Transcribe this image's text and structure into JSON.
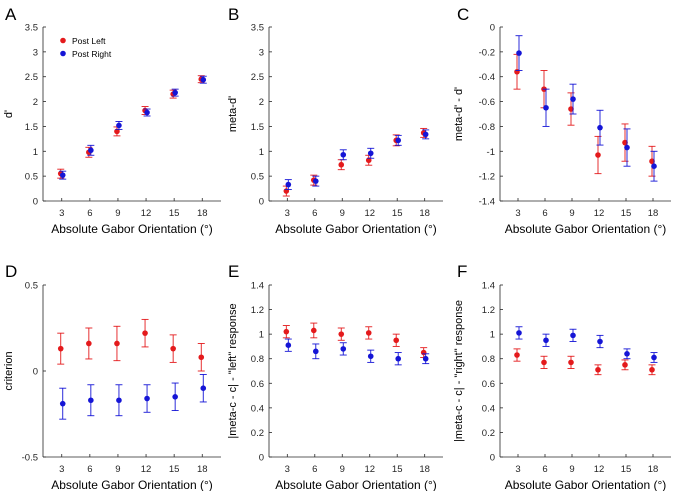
{
  "colors": {
    "red": "#e41a1c",
    "blue": "#1515d6",
    "axis": "#262626"
  },
  "chart_data": [
    {
      "panel": "A",
      "type": "scatter",
      "xlabel": "Absolute Gabor Orientation (°)",
      "ylabel": "d'",
      "xticks": [
        "3",
        "6",
        "9",
        "12",
        "15",
        "18"
      ],
      "x": [
        3,
        6,
        9,
        12,
        15,
        18
      ],
      "xlim": [
        1,
        20
      ],
      "ylim": [
        0,
        3.5
      ],
      "yticks": [
        0,
        0.5,
        1,
        1.5,
        2,
        2.5,
        3,
        3.5
      ],
      "ytick_labels": [
        "0",
        "0.5",
        "1",
        "1.5",
        "2",
        "2.5",
        "3",
        "3.5"
      ],
      "legend": {
        "position": "top-left",
        "entries": [
          "Post Left",
          "Post Right"
        ]
      },
      "series": [
        {
          "name": "Post Left",
          "color": "red",
          "values": [
            0.55,
            0.98,
            1.4,
            1.82,
            2.15,
            2.45
          ],
          "err": [
            0.09,
            0.1,
            0.09,
            0.08,
            0.08,
            0.07
          ]
        },
        {
          "name": "Post Right",
          "color": "blue",
          "values": [
            0.52,
            1.02,
            1.52,
            1.78,
            2.18,
            2.44
          ],
          "err": [
            0.08,
            0.1,
            0.08,
            0.07,
            0.07,
            0.07
          ]
        }
      ]
    },
    {
      "panel": "B",
      "type": "scatter",
      "xlabel": "Absolute Gabor Orientation (°)",
      "ylabel": "meta-d'",
      "xticks": [
        "3",
        "6",
        "9",
        "12",
        "15",
        "18"
      ],
      "x": [
        3,
        6,
        9,
        12,
        15,
        18
      ],
      "xlim": [
        1,
        20
      ],
      "ylim": [
        0,
        3.5
      ],
      "yticks": [
        0,
        0.5,
        1,
        1.5,
        2,
        2.5,
        3,
        3.5
      ],
      "ytick_labels": [
        "0",
        "0.5",
        "1",
        "1.5",
        "2",
        "2.5",
        "3",
        "3.5"
      ],
      "series": [
        {
          "name": "Post Left",
          "color": "red",
          "values": [
            0.2,
            0.42,
            0.73,
            0.82,
            1.22,
            1.37
          ],
          "err": [
            0.1,
            0.1,
            0.1,
            0.1,
            0.11,
            0.09
          ]
        },
        {
          "name": "Post Right",
          "color": "blue",
          "values": [
            0.33,
            0.4,
            0.93,
            0.96,
            1.22,
            1.34
          ],
          "err": [
            0.1,
            0.1,
            0.1,
            0.1,
            0.1,
            0.09
          ]
        }
      ]
    },
    {
      "panel": "C",
      "type": "scatter",
      "xlabel": "Absolute Gabor Orientation (°)",
      "ylabel": "meta-d' - d'",
      "xticks": [
        "3",
        "6",
        "9",
        "12",
        "15",
        "18"
      ],
      "x": [
        3,
        6,
        9,
        12,
        15,
        18
      ],
      "xlim": [
        1,
        20
      ],
      "ylim": [
        -1.4,
        0
      ],
      "yticks": [
        -1.4,
        -1.2,
        -1,
        -0.8,
        -0.6,
        -0.4,
        -0.2,
        0
      ],
      "ytick_labels": [
        "-1.4",
        "-1.2",
        "-1",
        "-0.8",
        "-0.6",
        "-0.4",
        "-0.2",
        "0"
      ],
      "series": [
        {
          "name": "Post Left",
          "color": "red",
          "values": [
            -0.36,
            -0.5,
            -0.66,
            -1.03,
            -0.93,
            -1.08
          ],
          "err": [
            0.14,
            0.15,
            0.13,
            0.15,
            0.15,
            0.12
          ]
        },
        {
          "name": "Post Right",
          "color": "blue",
          "values": [
            -0.21,
            -0.65,
            -0.58,
            -0.81,
            -0.97,
            -1.12
          ],
          "err": [
            0.14,
            0.15,
            0.12,
            0.14,
            0.15,
            0.12
          ]
        }
      ]
    },
    {
      "panel": "D",
      "type": "scatter",
      "xlabel": "Absolute Gabor Orientation (°)",
      "ylabel": "criterion",
      "xticks": [
        "3",
        "6",
        "9",
        "12",
        "15",
        "18"
      ],
      "x": [
        3,
        6,
        9,
        12,
        15,
        18
      ],
      "xlim": [
        1,
        20
      ],
      "ylim": [
        -0.5,
        0.5
      ],
      "yticks": [
        -0.5,
        0,
        0.5
      ],
      "ytick_labels": [
        "-0.5",
        "0",
        "0.5"
      ],
      "series": [
        {
          "name": "Post Left",
          "color": "red",
          "values": [
            0.13,
            0.16,
            0.16,
            0.22,
            0.13,
            0.08
          ],
          "err": [
            0.09,
            0.09,
            0.1,
            0.08,
            0.08,
            0.08
          ]
        },
        {
          "name": "Post Right",
          "color": "blue",
          "values": [
            -0.19,
            -0.17,
            -0.17,
            -0.16,
            -0.15,
            -0.1
          ],
          "err": [
            0.09,
            0.09,
            0.09,
            0.08,
            0.08,
            0.08
          ]
        }
      ]
    },
    {
      "panel": "E",
      "type": "scatter",
      "xlabel": "Absolute Gabor Orientation (°)",
      "ylabel": "|meta-c - c| - \"left\" response",
      "xticks": [
        "3",
        "6",
        "9",
        "12",
        "15",
        "18"
      ],
      "x": [
        3,
        6,
        9,
        12,
        15,
        18
      ],
      "xlim": [
        1,
        20
      ],
      "ylim": [
        0,
        1.4
      ],
      "yticks": [
        0,
        0.2,
        0.4,
        0.6,
        0.8,
        1,
        1.2,
        1.4
      ],
      "ytick_labels": [
        "0",
        "0.2",
        "0.4",
        "0.6",
        "0.8",
        "1",
        "1.2",
        "1.4"
      ],
      "series": [
        {
          "name": "Post Left",
          "color": "red",
          "values": [
            1.02,
            1.03,
            1.0,
            1.01,
            0.95,
            0.85
          ],
          "err": [
            0.05,
            0.06,
            0.05,
            0.05,
            0.05,
            0.04
          ]
        },
        {
          "name": "Post Right",
          "color": "blue",
          "values": [
            0.91,
            0.86,
            0.88,
            0.82,
            0.8,
            0.8
          ],
          "err": [
            0.05,
            0.06,
            0.05,
            0.05,
            0.05,
            0.04
          ]
        }
      ]
    },
    {
      "panel": "F",
      "type": "scatter",
      "xlabel": "Absolute Gabor Orientation (°)",
      "ylabel": "|meta-c - c| - \"right\" response",
      "xticks": [
        "3",
        "6",
        "9",
        "12",
        "15",
        "18"
      ],
      "x": [
        3,
        6,
        9,
        12,
        15,
        18
      ],
      "xlim": [
        1,
        20
      ],
      "ylim": [
        0,
        1.4
      ],
      "yticks": [
        0,
        0.2,
        0.4,
        0.6,
        0.8,
        1,
        1.2,
        1.4
      ],
      "ytick_labels": [
        "0",
        "0.2",
        "0.4",
        "0.6",
        "0.8",
        "1",
        "1.2",
        "1.4"
      ],
      "series": [
        {
          "name": "Post Left",
          "color": "red",
          "values": [
            0.83,
            0.77,
            0.77,
            0.71,
            0.75,
            0.71
          ],
          "err": [
            0.05,
            0.05,
            0.05,
            0.04,
            0.04,
            0.04
          ]
        },
        {
          "name": "Post Right",
          "color": "blue",
          "values": [
            1.01,
            0.95,
            0.99,
            0.94,
            0.84,
            0.81
          ],
          "err": [
            0.05,
            0.05,
            0.05,
            0.05,
            0.04,
            0.04
          ]
        }
      ]
    }
  ]
}
